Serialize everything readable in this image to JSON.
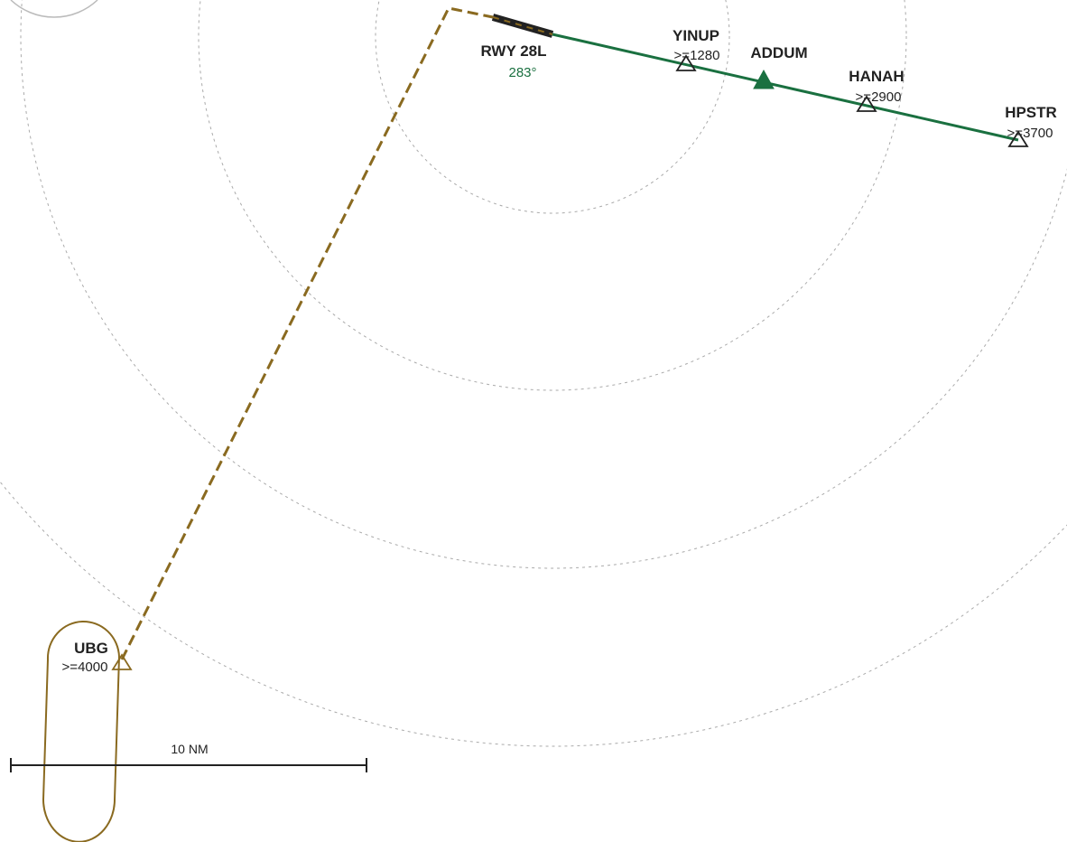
{
  "colors": {
    "approach": "#1a7040",
    "hold_route": "#8a6a20",
    "ring": "#aaaaaa",
    "runway": "#222222",
    "text": "#222222"
  },
  "runway": {
    "label": "RWY 28L",
    "heading": "283°"
  },
  "waypoints": [
    {
      "name": "YINUP",
      "altitude": ">=1280",
      "symbol": "triangle-outline-icon"
    },
    {
      "name": "ADDUM",
      "altitude": "",
      "symbol": "triangle-filled-icon"
    },
    {
      "name": "HANAH",
      "altitude": ">=2900",
      "symbol": "triangle-outline-icon"
    },
    {
      "name": "HPSTR",
      "altitude": ">=3700",
      "symbol": "triangle-outline-icon"
    }
  ],
  "holding_fix": {
    "name": "UBG",
    "altitude": ">=4000",
    "symbol": "triangle-outline-icon"
  },
  "scale_bar": {
    "label": "10 NM"
  }
}
